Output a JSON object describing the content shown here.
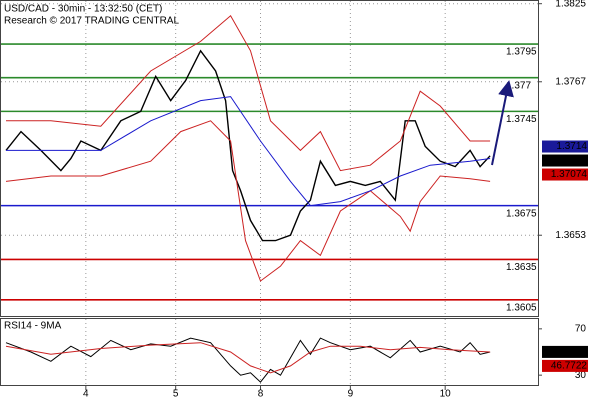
{
  "chart_data": [
    {
      "type": "line",
      "title": "USD/CAD - 30min - 13:32:50 (CET)",
      "subtitle": "Research © 2017 TRADING CENTRAL",
      "xlim": [
        0,
        107.6
      ],
      "xticks": [
        {
          "value": 17,
          "label": "4"
        },
        {
          "value": 35,
          "label": "5"
        },
        {
          "value": 52,
          "label": "8"
        },
        {
          "value": 70,
          "label": "9"
        },
        {
          "value": 89,
          "label": "10"
        }
      ],
      "ylim": [
        1.3593,
        1.3827
      ],
      "yticks": [
        1.3825,
        1.3767,
        1.3653
      ],
      "grid": true,
      "series": [
        {
          "color": "#000000",
          "x": [
            1,
            4,
            8,
            12,
            14,
            16,
            20,
            24,
            28,
            31,
            34,
            37,
            40,
            43,
            45,
            46.4,
            48,
            50,
            52.4,
            55,
            58,
            60,
            62,
            64,
            67,
            70,
            73,
            76,
            79,
            81,
            83,
            85,
            88,
            91,
            94,
            96,
            98
          ],
          "values": [
            1.3716,
            1.373,
            1.3716,
            1.3701,
            1.371,
            1.3723,
            1.3716,
            1.3738,
            1.3745,
            1.3771,
            1.3753,
            1.3768,
            1.379,
            1.3775,
            1.3753,
            1.3701,
            1.3686,
            1.3664,
            1.3649,
            1.3649,
            1.3653,
            1.3671,
            1.3679,
            1.3708,
            1.369,
            1.3693,
            1.369,
            1.3693,
            1.3679,
            1.3738,
            1.3738,
            1.3719,
            1.3708,
            1.3704,
            1.3716,
            1.3704,
            1.3712
          ]
        },
        {
          "color": "#cc2222",
          "x": [
            1,
            10,
            20,
            30,
            40,
            46,
            50,
            54,
            60,
            64,
            68,
            74,
            80,
            84,
            88,
            94,
            98
          ],
          "values": [
            1.3738,
            1.3738,
            1.3734,
            1.3775,
            1.3797,
            1.3816,
            1.379,
            1.3738,
            1.3716,
            1.373,
            1.3701,
            1.3705,
            1.3723,
            1.376,
            1.3749,
            1.3723,
            1.3723
          ]
        },
        {
          "color": "#cc2222",
          "x": [
            1,
            10,
            20,
            30,
            36,
            42,
            46,
            49,
            52,
            56,
            60,
            64,
            68,
            74,
            80,
            82,
            84,
            88,
            94,
            98
          ],
          "values": [
            1.3693,
            1.3697,
            1.3697,
            1.3708,
            1.373,
            1.3738,
            1.3723,
            1.3649,
            1.3619,
            1.363,
            1.3649,
            1.3638,
            1.3671,
            1.3686,
            1.3667,
            1.3656,
            1.3678,
            1.3697,
            1.3695,
            1.3693
          ]
        },
        {
          "color": "#1a1acd",
          "x": [
            1,
            20,
            30,
            40,
            46,
            52,
            58,
            62,
            68,
            74,
            80,
            86,
            94,
            98
          ],
          "values": [
            1.3716,
            1.3716,
            1.3738,
            1.3753,
            1.3756,
            1.3723,
            1.3693,
            1.3675,
            1.3678,
            1.3686,
            1.3697,
            1.3705,
            1.3708,
            1.371
          ]
        }
      ],
      "levels": [
        {
          "value": 1.3795,
          "color": "#2b8a2b"
        },
        {
          "value": 1.377,
          "color": "#2b8a2b"
        },
        {
          "value": 1.3745,
          "color": "#2b8a2b"
        },
        {
          "value": 1.3675,
          "color": "#1a1acd"
        },
        {
          "value": 1.3635,
          "color": "#cc0000"
        },
        {
          "value": 1.3605,
          "color": "#cc0000"
        }
      ],
      "price_labels": [
        {
          "value": 1.3714,
          "color": "#1a1a9a"
        },
        {
          "value": 1.37085,
          "color": "#000000"
        },
        {
          "value": 1.37074,
          "color": "#cc0000"
        }
      ]
    },
    {
      "type": "line",
      "title": "RSI14 - 9MA",
      "xlim": [
        0,
        107.6
      ],
      "ylim": [
        21.5,
        78.5
      ],
      "yticks": [
        70,
        30
      ],
      "series": [
        {
          "color": "#000000",
          "x": [
            1,
            6,
            10,
            14,
            18,
            22,
            26,
            30,
            34,
            38,
            42,
            46,
            48,
            50,
            52,
            54,
            56,
            58,
            60,
            62,
            64,
            66,
            70,
            74,
            78,
            82,
            84,
            88,
            92,
            94,
            96,
            98
          ],
          "values": [
            58,
            50,
            42,
            55,
            46,
            60,
            52,
            57,
            55,
            62,
            58,
            38,
            30,
            32,
            24,
            35,
            30,
            45,
            60,
            48,
            62,
            58,
            52,
            55,
            45,
            60,
            50,
            55,
            50,
            58,
            48,
            50
          ]
        },
        {
          "color": "#cc2222",
          "x": [
            1,
            10,
            20,
            30,
            40,
            46,
            50,
            54,
            58,
            62,
            66,
            72,
            78,
            84,
            90,
            98
          ],
          "values": [
            55,
            48,
            53,
            56,
            58,
            50,
            38,
            32,
            38,
            50,
            55,
            55,
            52,
            54,
            52,
            50
          ]
        }
      ],
      "price_labels": [
        {
          "value": 50.0814,
          "color": "#000000"
        },
        {
          "value": 46.7722,
          "color": "#cc0000"
        }
      ]
    }
  ]
}
